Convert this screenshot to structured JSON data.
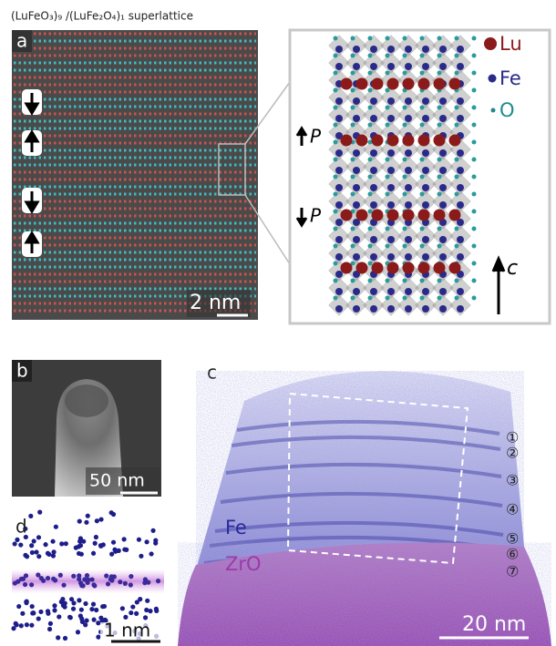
{
  "panel_a": {
    "title": "(LuFeO₃)₉ /(LuFe₂O₄)₁ superlattice",
    "label": "a",
    "scale_bar": "2 nm"
  },
  "inset": {
    "legend": [
      {
        "label": "Lu"
      },
      {
        "label": "Fe"
      },
      {
        "label": "O"
      }
    ],
    "polarization_labels": [
      "P",
      "P"
    ],
    "axis_label": "c"
  },
  "panel_b": {
    "label": "b",
    "scale_bar": "50 nm"
  },
  "panel_c": {
    "label": "c",
    "scale_bar": "20 nm",
    "species": [
      "Fe",
      "ZrO"
    ],
    "layer_numbers": [
      "①",
      "②",
      "③",
      "④",
      "⑤",
      "⑥",
      "⑦"
    ]
  },
  "panel_d": {
    "label": "d",
    "scale_bar": "1 nm"
  }
}
